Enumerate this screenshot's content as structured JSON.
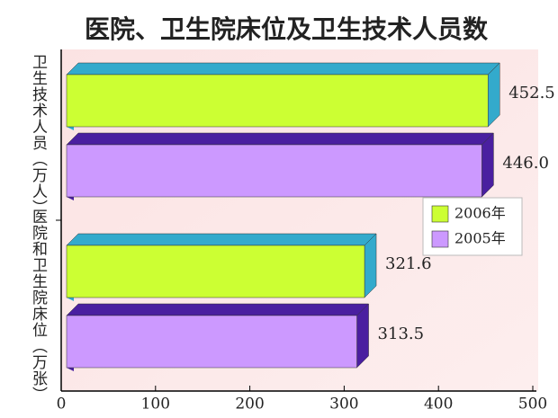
{
  "chart_data": {
    "type": "bar3d_h",
    "title": "医院、卫生院床位及卫生技术人员数",
    "categories": [
      "卫生技术人员（万人）",
      "医院和卫生院床位（万张）"
    ],
    "series": [
      {
        "name": "2006年",
        "color": "#ccff33",
        "edge_color": "#33aacc",
        "values": [
          452.5,
          321.6
        ]
      },
      {
        "name": "2005年",
        "color": "#cc99ff",
        "edge_color": "#4a1fa0",
        "values": [
          446.0,
          313.5
        ],
        "value_labels": [
          "446.0",
          "313.5"
        ]
      }
    ],
    "xlim": [
      0,
      500
    ],
    "xticks": [
      0,
      100,
      200,
      300,
      400,
      500
    ]
  }
}
